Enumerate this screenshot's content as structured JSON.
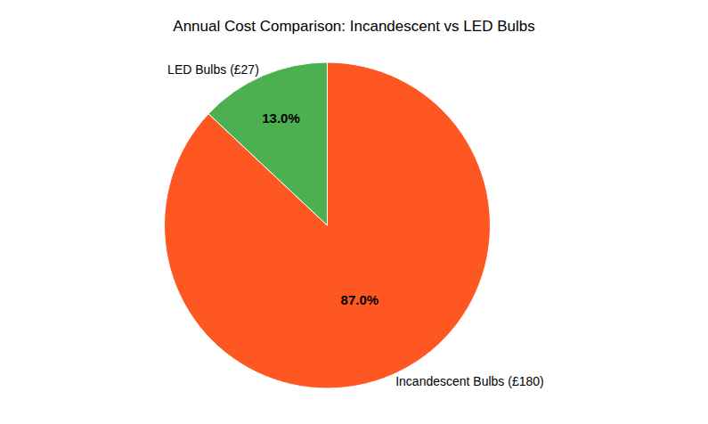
{
  "chart_data": {
    "type": "pie",
    "title": "Annual Cost Comparison: Incandescent vs LED Bulbs",
    "categories": [
      "Incandescent Bulbs (£180)",
      "LED Bulbs (£27)"
    ],
    "values": [
      87.0,
      13.0
    ],
    "value_labels": [
      "87.0%",
      "13.0%"
    ],
    "colors": [
      "#FF5722",
      "#4CAF50"
    ]
  }
}
